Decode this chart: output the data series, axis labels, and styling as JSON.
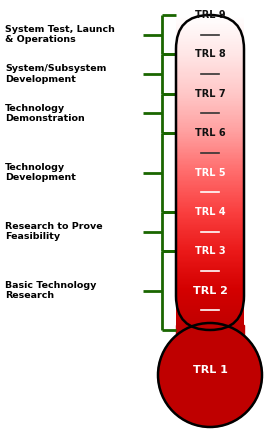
{
  "categories": [
    {
      "label": "System Test, Launch\n& Operations",
      "trl_min": 8,
      "trl_max": 9
    },
    {
      "label": "System/Subsystem\nDevelopment",
      "trl_min": 7,
      "trl_max": 8
    },
    {
      "label": "Technology\nDemonstration",
      "trl_min": 6,
      "trl_max": 7
    },
    {
      "label": "Technology\nDevelopment",
      "trl_min": 4,
      "trl_max": 6
    },
    {
      "label": "Research to Prove\nFeasibility",
      "trl_min": 3,
      "trl_max": 4
    },
    {
      "label": "Basic Technology\nResearch",
      "trl_min": 1,
      "trl_max": 3
    }
  ],
  "trl_colors": {
    "9": [
      1.0,
      1.0,
      1.0
    ],
    "8": [
      1.0,
      0.9,
      0.9
    ],
    "7": [
      1.0,
      0.78,
      0.78
    ],
    "6": [
      1.0,
      0.62,
      0.62
    ],
    "5": [
      1.0,
      0.42,
      0.42
    ],
    "4": [
      0.98,
      0.25,
      0.25
    ],
    "3": [
      0.92,
      0.1,
      0.1
    ],
    "2": [
      0.83,
      0.0,
      0.0
    ],
    "1": [
      0.75,
      0.0,
      0.0
    ]
  },
  "green_color": "#1a6600",
  "bg_color": "#ffffff"
}
